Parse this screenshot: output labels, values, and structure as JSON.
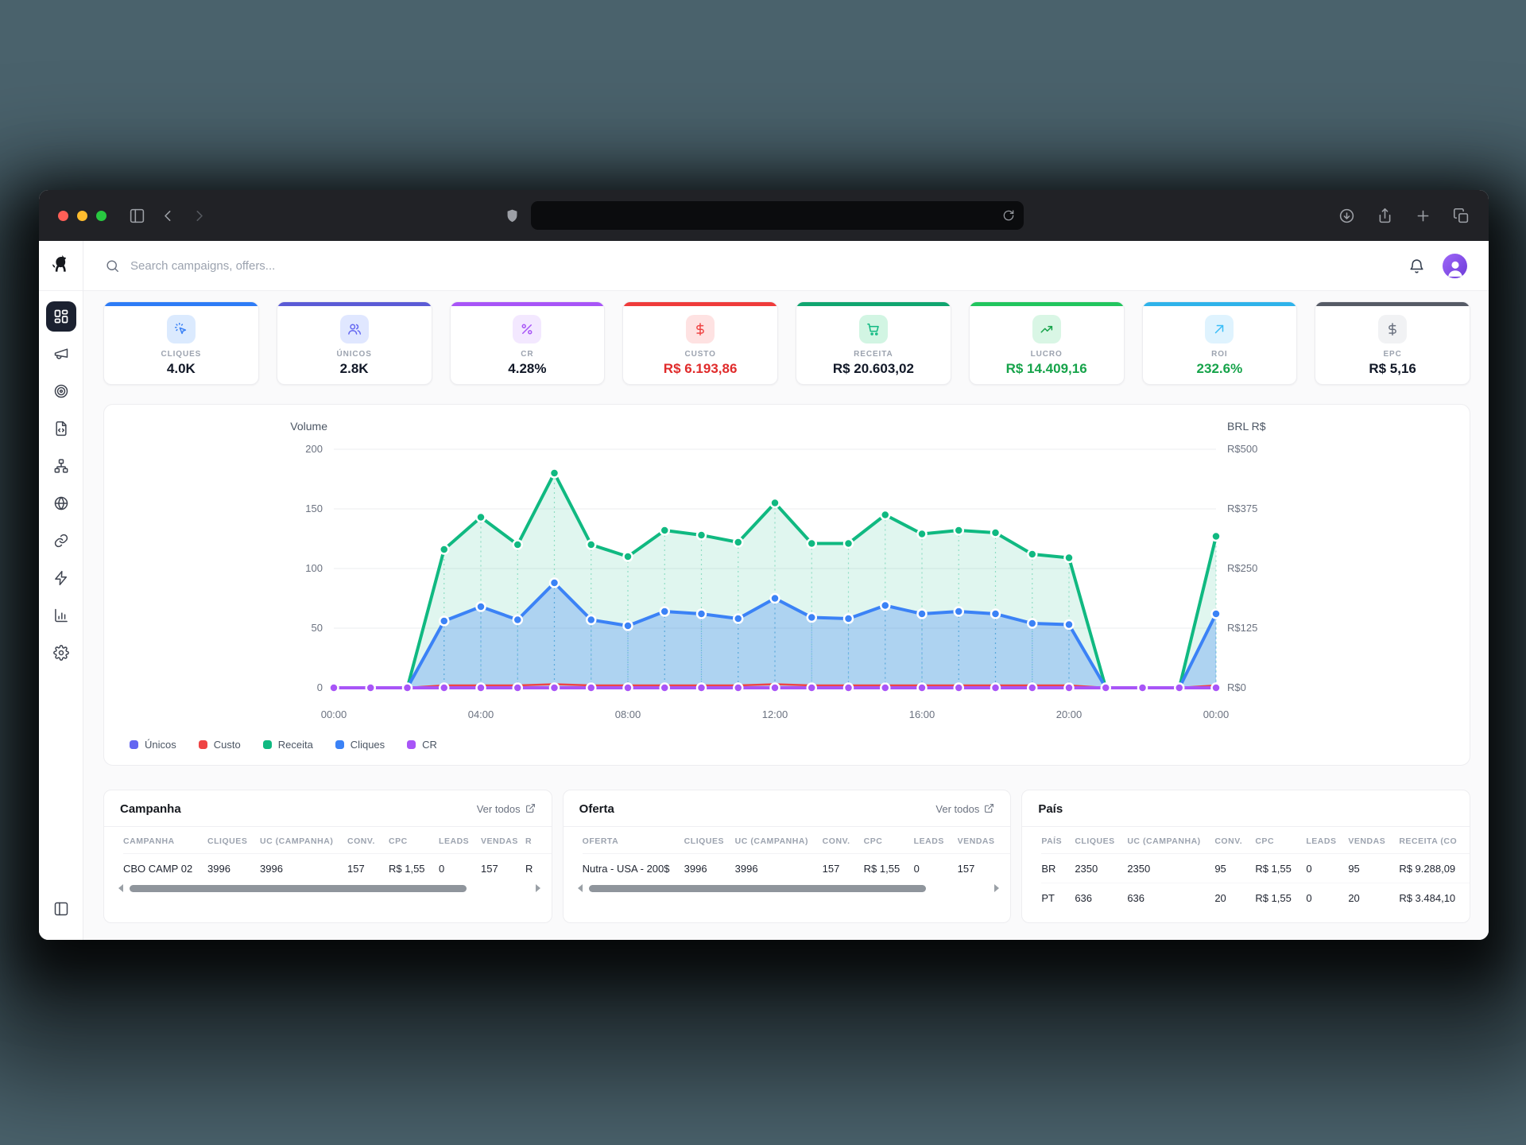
{
  "browser": {
    "url_value": "",
    "icons": {
      "left": [
        "panel-left-icon",
        "chevron-left-icon",
        "chevron-right-icon"
      ],
      "center": [
        "shield-icon",
        "reload-icon"
      ],
      "right": [
        "download-icon",
        "share-icon",
        "new-tab-icon",
        "tabs-icon"
      ]
    }
  },
  "app": {
    "logo_icon": "dog-icon",
    "search_placeholder": "Search campaigns, offers...",
    "sidebar": [
      {
        "icon": "layout-dashboard",
        "active": true
      },
      {
        "icon": "megaphone",
        "active": false
      },
      {
        "icon": "target",
        "active": false
      },
      {
        "icon": "file-code",
        "active": false
      },
      {
        "icon": "sitemap",
        "active": false
      },
      {
        "icon": "globe",
        "active": false
      },
      {
        "icon": "link",
        "active": false
      },
      {
        "icon": "zap",
        "active": false
      },
      {
        "icon": "bar-chart",
        "active": false
      },
      {
        "icon": "settings",
        "active": false
      }
    ],
    "kpis": [
      {
        "label": "CLIQUES",
        "value": "4.0K",
        "icon": "cursor-click",
        "accent": "#2E7CF6",
        "chip_bg": "#DBEAFE",
        "icon_color": "#3B82F6",
        "value_color": "#111827"
      },
      {
        "label": "ÚNICOS",
        "value": "2.8K",
        "icon": "users",
        "accent": "#5B5BD6",
        "chip_bg": "#E0E7FF",
        "icon_color": "#6366F1",
        "value_color": "#111827"
      },
      {
        "label": "CR",
        "value": "4.28%",
        "icon": "percent",
        "accent": "#A855F7",
        "chip_bg": "#F3E8FF",
        "icon_color": "#A855F7",
        "value_color": "#111827"
      },
      {
        "label": "CUSTO",
        "value": "R$ 6.193,86",
        "icon": "dollar",
        "accent": "#EF3B3B",
        "chip_bg": "#FEE2E2",
        "icon_color": "#EF4444",
        "value_color": "#E02B2B"
      },
      {
        "label": "RECEITA",
        "value": "R$ 20.603,02",
        "icon": "cart",
        "accent": "#10A56F",
        "chip_bg": "#D2F5E3",
        "icon_color": "#10B981",
        "value_color": "#111827"
      },
      {
        "label": "LUCRO",
        "value": "R$ 14.409,16",
        "icon": "trending-up",
        "accent": "#22C55E",
        "chip_bg": "#D9F6E5",
        "icon_color": "#16A34A",
        "value_color": "#16A34A"
      },
      {
        "label": "ROI",
        "value": "232.6%",
        "icon": "arrow-up-right",
        "accent": "#2FB3EA",
        "chip_bg": "#DFF3FE",
        "icon_color": "#38BDF8",
        "value_color": "#16A34A"
      },
      {
        "label": "EPC",
        "value": "R$ 5,16",
        "icon": "dollar",
        "accent": "#565B66",
        "chip_bg": "#F1F2F4",
        "icon_color": "#6B7280",
        "value_color": "#111827"
      }
    ],
    "chart_data": {
      "type": "area",
      "x": [
        "00:00",
        "01:00",
        "02:00",
        "03:00",
        "04:00",
        "05:00",
        "06:00",
        "07:00",
        "08:00",
        "09:00",
        "10:00",
        "11:00",
        "12:00",
        "13:00",
        "14:00",
        "15:00",
        "16:00",
        "17:00",
        "18:00",
        "19:00",
        "20:00",
        "21:00",
        "22:00",
        "23:00",
        "00:00"
      ],
      "x_tick_labels": [
        "00:00",
        "04:00",
        "08:00",
        "12:00",
        "16:00",
        "20:00",
        "00:00"
      ],
      "y_left": {
        "title": "Volume",
        "ticks": [
          0,
          50,
          100,
          150,
          200
        ],
        "max": 200
      },
      "y_right": {
        "title": "BRL R$",
        "tick_labels": [
          "R$0",
          "R$125",
          "R$250",
          "R$375",
          "R$500"
        ]
      },
      "grid": true,
      "legend_position": "bottom-left",
      "series": [
        {
          "name": "Únicos",
          "color": "#6366F1",
          "values": [
            0,
            0,
            0,
            0,
            0,
            0,
            0,
            0,
            0,
            0,
            0,
            0,
            0,
            0,
            0,
            0,
            0,
            0,
            0,
            0,
            0,
            0,
            0,
            0,
            0
          ]
        },
        {
          "name": "Custo",
          "color": "#EF4444",
          "values": [
            0,
            0,
            0,
            2,
            2,
            2,
            3,
            2,
            2,
            2,
            2,
            2,
            3,
            2,
            2,
            2,
            2,
            2,
            2,
            2,
            2,
            0,
            0,
            0,
            2
          ]
        },
        {
          "name": "Receita",
          "color": "#10B981",
          "fill": "rgba(16,185,129,0.13)",
          "values": [
            0,
            0,
            0,
            116,
            143,
            120,
            180,
            120,
            110,
            132,
            128,
            122,
            155,
            121,
            121,
            145,
            129,
            132,
            130,
            112,
            109,
            0,
            0,
            0,
            127
          ]
        },
        {
          "name": "Cliques",
          "color": "#3B82F6",
          "fill": "rgba(59,130,246,0.30)",
          "values": [
            0,
            0,
            0,
            56,
            68,
            57,
            88,
            57,
            52,
            64,
            62,
            58,
            75,
            59,
            58,
            69,
            62,
            64,
            62,
            54,
            53,
            0,
            0,
            0,
            62
          ]
        },
        {
          "name": "CR",
          "color": "#A855F7",
          "values": [
            0,
            0,
            0,
            0,
            0,
            0,
            0,
            0,
            0,
            0,
            0,
            0,
            0,
            0,
            0,
            0,
            0,
            0,
            0,
            0,
            0,
            0,
            0,
            0,
            0
          ]
        }
      ]
    },
    "tables": [
      {
        "title": "Campanha",
        "link_label": "Ver todos",
        "scrollbar": true,
        "columns": [
          "CAMPANHA",
          "CLIQUES",
          "UC (CAMPANHA)",
          "CONV.",
          "CPC",
          "LEADS",
          "VENDAS",
          "R"
        ],
        "rows": [
          [
            "CBO CAMP 02",
            "3996",
            "3996",
            "157",
            "R$ 1,55",
            "0",
            "157",
            "R"
          ]
        ]
      },
      {
        "title": "Oferta",
        "link_label": "Ver todos",
        "scrollbar": true,
        "columns": [
          "OFERTA",
          "CLIQUES",
          "UC (CAMPANHA)",
          "CONV.",
          "CPC",
          "LEADS",
          "VENDAS"
        ],
        "rows": [
          [
            "Nutra - USA - 200$",
            "3996",
            "3996",
            "157",
            "R$ 1,55",
            "0",
            "157"
          ]
        ]
      },
      {
        "title": "País",
        "scrollbar": false,
        "columns": [
          "PAÍS",
          "CLIQUES",
          "UC (CAMPANHA)",
          "CONV.",
          "CPC",
          "LEADS",
          "VENDAS",
          "RECEITA (CO"
        ],
        "rows": [
          [
            "BR",
            "2350",
            "2350",
            "95",
            "R$ 1,55",
            "0",
            "95",
            "R$ 9.288,09"
          ],
          [
            "PT",
            "636",
            "636",
            "20",
            "R$ 1,55",
            "0",
            "20",
            "R$ 3.484,10"
          ]
        ]
      }
    ]
  }
}
